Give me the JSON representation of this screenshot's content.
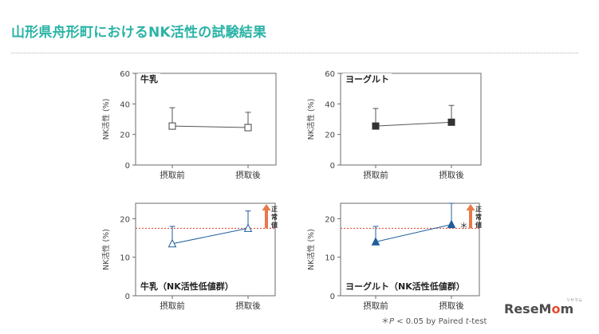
{
  "header": {
    "title": "山形県舟形町におけるNK活性の試験結果"
  },
  "footnote": {
    "prefix": "＊",
    "p": "P",
    "condition": " < 0.05 by Paired ",
    "t": "t",
    "suffix": "-test"
  },
  "logo": {
    "text_pre": "ReseM",
    "text_o": "o",
    "text_post": "m",
    "kana": "リセマム"
  },
  "colors": {
    "title": "#2bb3a6",
    "dark_series": "#333333",
    "blue_series": "#1f5e9c",
    "normal_arrow": "#e8794a",
    "normal_line": "#d9412b"
  },
  "chart_data": [
    {
      "type": "line",
      "panel_label": "牛乳",
      "ylabel": "NK活性 (%)",
      "categories": [
        "摂取前",
        "摂取後"
      ],
      "yticks": [
        0,
        20,
        40,
        60
      ],
      "ylim": [
        0,
        60
      ],
      "marker": "open-square",
      "series": [
        {
          "values": [
            25.5,
            24.5
          ],
          "error_upper": [
            37.5,
            34.5
          ]
        }
      ]
    },
    {
      "type": "line",
      "panel_label": "ヨーグルト",
      "ylabel": "NK活性 (%)",
      "categories": [
        "摂取前",
        "摂取後"
      ],
      "yticks": [
        0,
        20,
        40,
        60
      ],
      "ylim": [
        0,
        60
      ],
      "marker": "filled-square",
      "series": [
        {
          "values": [
            25.5,
            28
          ],
          "error_upper": [
            37,
            39
          ]
        }
      ]
    },
    {
      "type": "line",
      "panel_label": "牛乳（NK活性低値群）",
      "ylabel": "NK活性 (%)",
      "categories": [
        "摂取前",
        "摂取後"
      ],
      "yticks": [
        0,
        10,
        20
      ],
      "ylim": [
        0,
        24
      ],
      "marker": "open-triangle",
      "series": [
        {
          "values": [
            13.5,
            17.5
          ],
          "error_upper": [
            18,
            22
          ]
        }
      ],
      "reference_line": {
        "value": 17.5,
        "label": "正常値"
      },
      "significance": ""
    },
    {
      "type": "line",
      "panel_label": "ヨーグルト（NK活性低値群）",
      "ylabel": "NK活性 (%)",
      "categories": [
        "摂取前",
        "摂取後"
      ],
      "yticks": [
        0,
        10,
        20
      ],
      "ylim": [
        0,
        24
      ],
      "marker": "filled-triangle",
      "series": [
        {
          "values": [
            14,
            18.5
          ],
          "error_upper": [
            18,
            24
          ]
        }
      ],
      "reference_line": {
        "value": 17.5,
        "label": "正常値"
      },
      "significance": "＊"
    }
  ]
}
